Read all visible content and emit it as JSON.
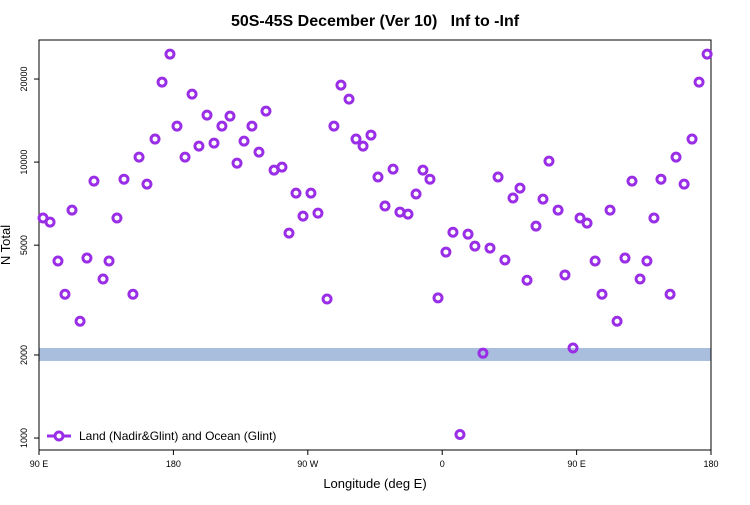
{
  "chart_data": {
    "type": "scatter",
    "title": "50S-45S December (Ver 10)   Inf to -Inf",
    "x_label": "Longitude (deg E)",
    "y_label": "N Total",
    "log_y": true,
    "legend": "bottom-left",
    "xlim": [
      90,
      540
    ],
    "ylim": [
      905,
      27700
    ],
    "xticks": [
      {
        "value": 90,
        "label": "90 E"
      },
      {
        "value": 180,
        "label": "180"
      },
      {
        "value": 270,
        "label": "90 W"
      },
      {
        "value": 360,
        "label": "0"
      },
      {
        "value": 450,
        "label": "90 E"
      },
      {
        "value": 540,
        "label": "180"
      }
    ],
    "yticks": [
      1000,
      2000,
      5000,
      10000,
      20000
    ],
    "reference_band": {
      "y": 2000,
      "color": "#a9bedc"
    },
    "series": [
      {
        "name": "Land (Nadir&Glint) and Ocean (Glint)",
        "color": "#9a2ee6",
        "x": [
          92.7,
          97.4,
          102.7,
          107.4,
          112.1,
          117.5,
          122.1,
          126.8,
          132.9,
          136.9,
          142.2,
          146.9,
          152.9,
          157,
          162.3,
          167.7,
          172.4,
          177.7,
          182.4,
          187.8,
          192.5,
          197.1,
          202.5,
          207.2,
          212.5,
          217.9,
          222.6,
          227.3,
          232.6,
          237.3,
          242,
          247.4,
          252.7,
          257.4,
          262.1,
          266.8,
          272.1,
          276.8,
          282.9,
          287.5,
          292.2,
          297.6,
          302.3,
          307,
          312.3,
          317,
          321.7,
          327.1,
          331.7,
          337.1,
          342.5,
          347.1,
          351.8,
          357.2,
          362.5,
          367.2,
          371.9,
          377.3,
          381.9,
          387.3,
          392,
          397.4,
          402,
          407.4,
          412.1,
          416.8,
          422.8,
          427.5,
          431.5,
          437.6,
          442.2,
          447.6,
          452.3,
          457,
          462.4,
          467,
          472.4,
          477.1,
          482.4,
          487.1,
          492.5,
          497.1,
          501.8,
          506.5,
          512.6,
          516.6,
          522,
          527.3,
          532,
          537.4
        ],
        "values": [
          6270,
          6060,
          4380,
          3320,
          6700,
          2650,
          4490,
          8530,
          3770,
          4380,
          6270,
          8670,
          3320,
          10420,
          8320,
          12120,
          19490,
          24620,
          13500,
          10420,
          17630,
          11430,
          14800,
          11720,
          13500,
          14680,
          9910,
          11910,
          13500,
          10870,
          15300,
          9350,
          9590,
          5530,
          7720,
          6370,
          7720,
          6530,
          3190,
          13500,
          19010,
          16910,
          12120,
          11430,
          12530,
          8830,
          6930,
          9430,
          6590,
          6480,
          7660,
          9350,
          8670,
          3220,
          4720,
          5570,
          1030,
          5480,
          4960,
          2030,
          4880,
          8830,
          4420,
          7410,
          8050,
          3730,
          5860,
          7340,
          10080,
          6700,
          3900,
          2120,
          6270,
          6010,
          4380,
          3320,
          6700,
          2650,
          4490,
          8530,
          3770,
          4380,
          6270,
          8670,
          3320,
          10420,
          8320,
          12120,
          19490,
          24620
        ]
      }
    ]
  }
}
